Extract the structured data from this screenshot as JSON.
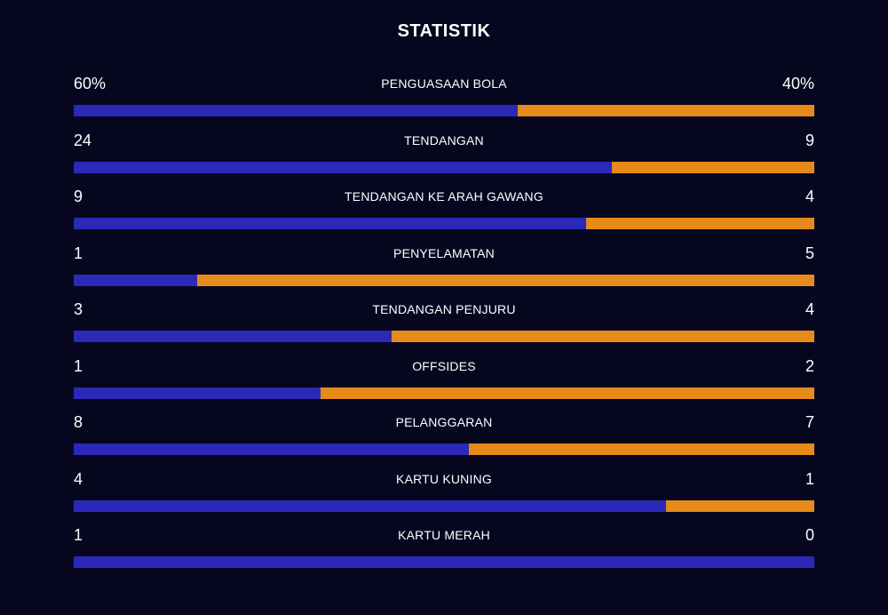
{
  "title": "STATISTIK",
  "colors": {
    "background": "#07061f",
    "home": "#2a29b8",
    "away": "#e68b1a",
    "text": "#ffffff"
  },
  "stats": [
    {
      "label": "PENGUASAAN BOLA",
      "home": "60%",
      "away": "40%",
      "home_share": 0.6
    },
    {
      "label": "TENDANGAN",
      "home": "24",
      "away": "9",
      "home_share": 0.727
    },
    {
      "label": "TENDANGAN KE ARAH GAWANG",
      "home": "9",
      "away": "4",
      "home_share": 0.692
    },
    {
      "label": "PENYELAMATAN",
      "home": "1",
      "away": "5",
      "home_share": 0.167
    },
    {
      "label": "TENDANGAN PENJURU",
      "home": "3",
      "away": "4",
      "home_share": 0.429
    },
    {
      "label": "OFFSIDES",
      "home": "1",
      "away": "2",
      "home_share": 0.333
    },
    {
      "label": "PELANGGARAN",
      "home": "8",
      "away": "7",
      "home_share": 0.533
    },
    {
      "label": "KARTU KUNING",
      "home": "4",
      "away": "1",
      "home_share": 0.8
    },
    {
      "label": "KARTU MERAH",
      "home": "1",
      "away": "0",
      "home_share": 1.0
    }
  ]
}
